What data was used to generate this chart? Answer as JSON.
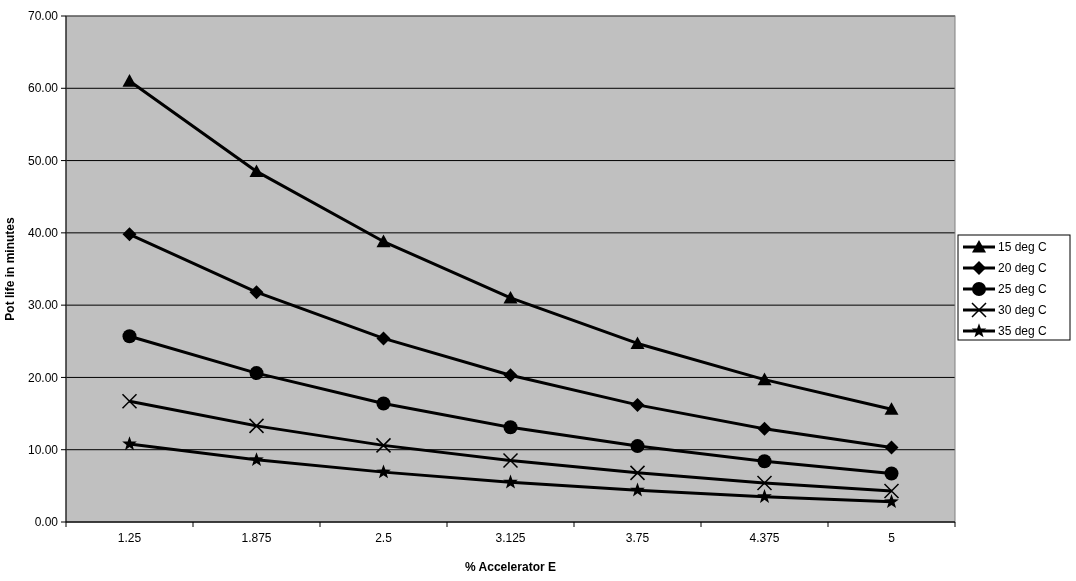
{
  "chart_data": {
    "type": "line",
    "xlabel": "% Accelerator E",
    "ylabel": "Pot life in minutes",
    "categories": [
      "1.25",
      "1.875",
      "2.5",
      "3.125",
      "3.75",
      "4.375",
      "5"
    ],
    "series": [
      {
        "name": "15 deg C",
        "color": "#000000",
        "marker": "triangle",
        "values": [
          61.0,
          48.5,
          38.8,
          31.0,
          24.7,
          19.7,
          15.6
        ]
      },
      {
        "name": "20 deg C",
        "color": "#000000",
        "marker": "diamond",
        "values": [
          39.8,
          31.8,
          25.4,
          20.3,
          16.2,
          12.9,
          10.3
        ]
      },
      {
        "name": "25 deg C",
        "color": "#000000",
        "marker": "circle",
        "values": [
          25.7,
          20.6,
          16.4,
          13.1,
          10.5,
          8.4,
          6.7
        ]
      },
      {
        "name": "30 deg C",
        "color": "#000000",
        "marker": "cross",
        "values": [
          16.7,
          13.3,
          10.6,
          8.5,
          6.8,
          5.4,
          4.3
        ]
      },
      {
        "name": "35 deg C",
        "color": "#000000",
        "marker": "star",
        "values": [
          10.8,
          8.6,
          6.9,
          5.5,
          4.4,
          3.5,
          2.8
        ]
      }
    ],
    "ylim": [
      0,
      70
    ],
    "yticks": [
      {
        "value": 0,
        "label": "0.00"
      },
      {
        "value": 10,
        "label": "10.00"
      },
      {
        "value": 20,
        "label": "20.00"
      },
      {
        "value": 30,
        "label": "30.00"
      },
      {
        "value": 40,
        "label": "40.00"
      },
      {
        "value": 50,
        "label": "50.00"
      },
      {
        "value": 60,
        "label": "60.00"
      },
      {
        "value": 70,
        "label": "70.00"
      }
    ],
    "grid": "y",
    "legend": "right"
  }
}
